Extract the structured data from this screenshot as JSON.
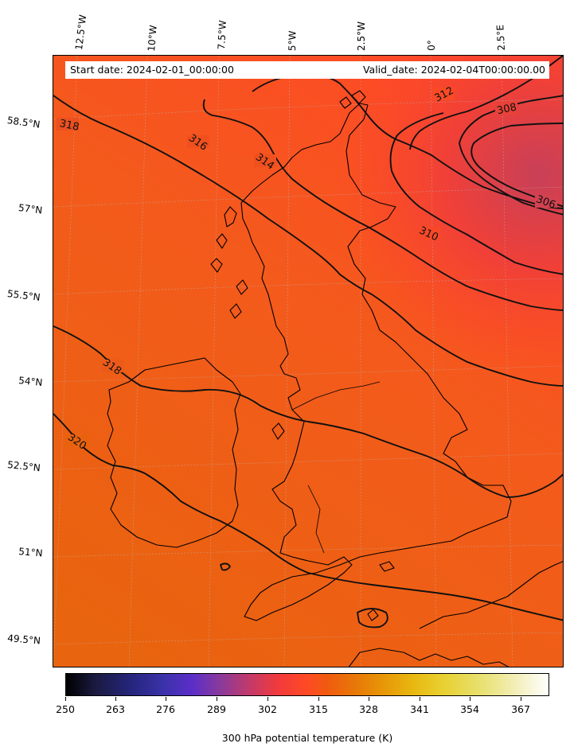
{
  "info": {
    "start_date": "Start date: 2024-02-01_00:00:00",
    "valid_date": "Valid_date: 2024-02-04T00:00:00.00"
  },
  "map": {
    "lon_labels": [
      "12.5°W",
      "10°W",
      "7.5°W",
      "5°W",
      "2.5°W",
      "0°",
      "2.5°E"
    ],
    "lat_labels": [
      "58.5°N",
      "57°N",
      "55.5°N",
      "54°N",
      "52.5°N",
      "51°N",
      "49.5°N"
    ],
    "contour_levels": [
      "318",
      "316",
      "314",
      "312",
      "310",
      "308",
      "306",
      "318",
      "320"
    ],
    "colors": {
      "background_warm": "#e8620e",
      "background_mid": "#ff4828",
      "background_cool": "#c84058",
      "coastline": "#000000",
      "contour": "#111111"
    }
  },
  "colorbar": {
    "title": "300 hPa potential temperature (K)",
    "ticks": [
      "250",
      "263",
      "276",
      "289",
      "302",
      "315",
      "328",
      "341",
      "354",
      "367"
    ],
    "colormap": "CMRmap"
  }
}
